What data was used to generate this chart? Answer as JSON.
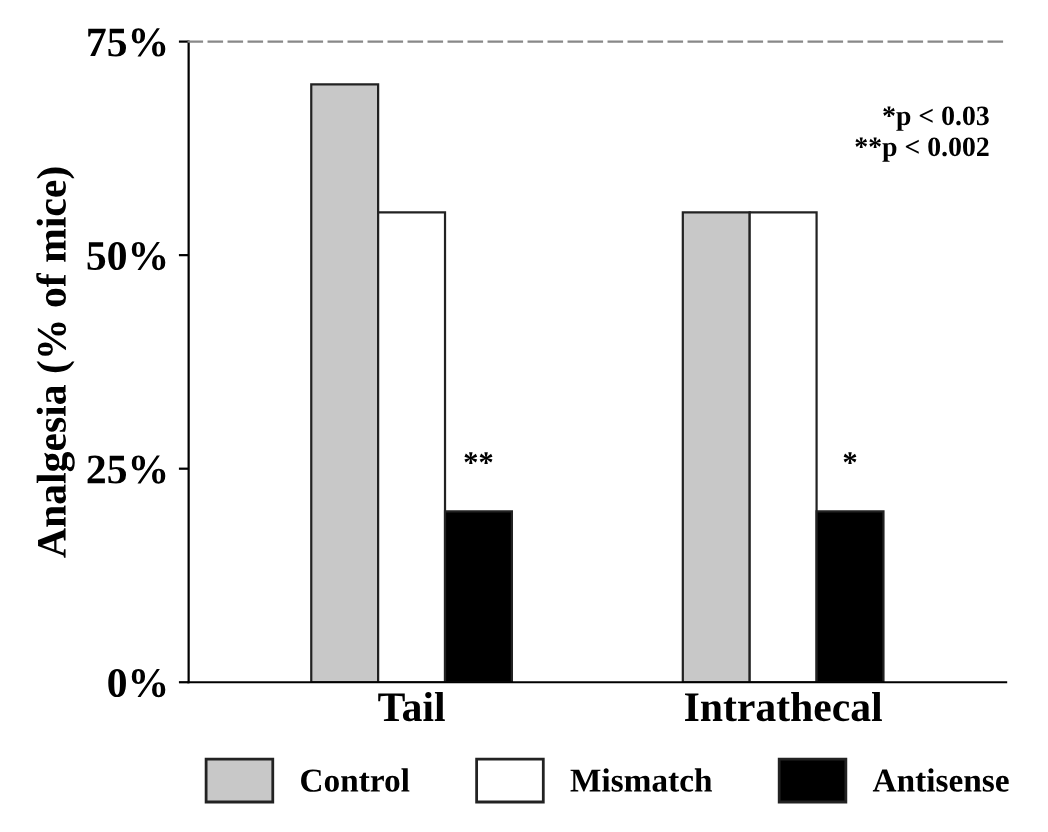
{
  "chart_data": {
    "type": "bar",
    "ylabel": "Analgesia (% of mice)",
    "categories": [
      "Tail",
      "Intrathecal"
    ],
    "series": [
      {
        "name": "Control",
        "color": "#c8c8c8",
        "values": [
          70,
          55
        ]
      },
      {
        "name": "Mismatch",
        "color": "#ffffff",
        "values": [
          55,
          55
        ]
      },
      {
        "name": "Antisense",
        "color": "#000000",
        "values": [
          20,
          20
        ]
      }
    ],
    "ylim": [
      0,
      75
    ],
    "yticks": [
      {
        "value": 0,
        "label": "0%"
      },
      {
        "value": 25,
        "label": "25%"
      },
      {
        "value": 50,
        "label": "50%"
      },
      {
        "value": 75,
        "label": "75%"
      }
    ],
    "annotations": [
      "**",
      "*",
      "*p < 0.03\n**p < 0.002"
    ],
    "legend": "bottom",
    "grid": false
  }
}
